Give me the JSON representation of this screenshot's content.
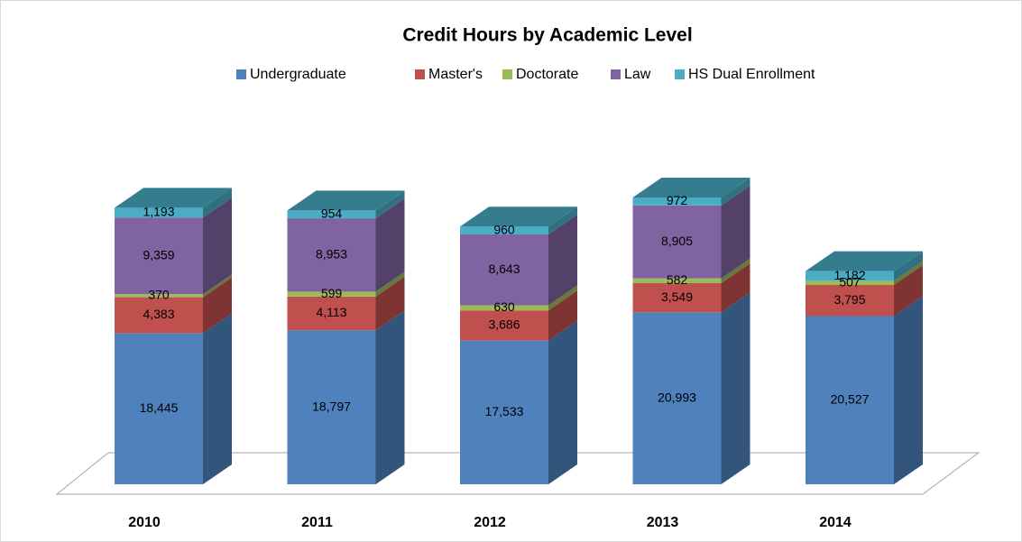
{
  "chart_data": {
    "type": "bar3d_stacked",
    "title": "Credit Hours by Academic Level",
    "categories": [
      "2010",
      "2011",
      "2012",
      "2013",
      "2014"
    ],
    "series": [
      {
        "name": "Undergraduate",
        "color": "#4f81bd",
        "values": [
          18445,
          18797,
          17533,
          20993,
          20527
        ],
        "value_labels": [
          "18,445",
          "18,797",
          "17,533",
          "20,993",
          "20,527"
        ]
      },
      {
        "name": "Master's",
        "color": "#c0504d",
        "values": [
          4383,
          4113,
          3686,
          3549,
          3795
        ],
        "value_labels": [
          "4,383",
          "4,113",
          "3,686",
          "3,549",
          "3,795"
        ]
      },
      {
        "name": "Doctorate",
        "color": "#9bbb59",
        "values": [
          370,
          599,
          630,
          582,
          507
        ],
        "value_labels": [
          "370",
          "599",
          "630",
          "582",
          "507"
        ]
      },
      {
        "name": "Law",
        "color": "#8064a2",
        "values": [
          9359,
          8953,
          8643,
          8905,
          null
        ],
        "value_labels": [
          "9,359",
          "8,953",
          "8,643",
          "8,905",
          null
        ]
      },
      {
        "name": "HS Dual Enrollment",
        "color": "#4bacc6",
        "values": [
          1193,
          954,
          960,
          972,
          1182
        ],
        "value_labels": [
          "1,193",
          "954",
          "960",
          "972",
          "1,182"
        ]
      }
    ],
    "legend": "top"
  }
}
